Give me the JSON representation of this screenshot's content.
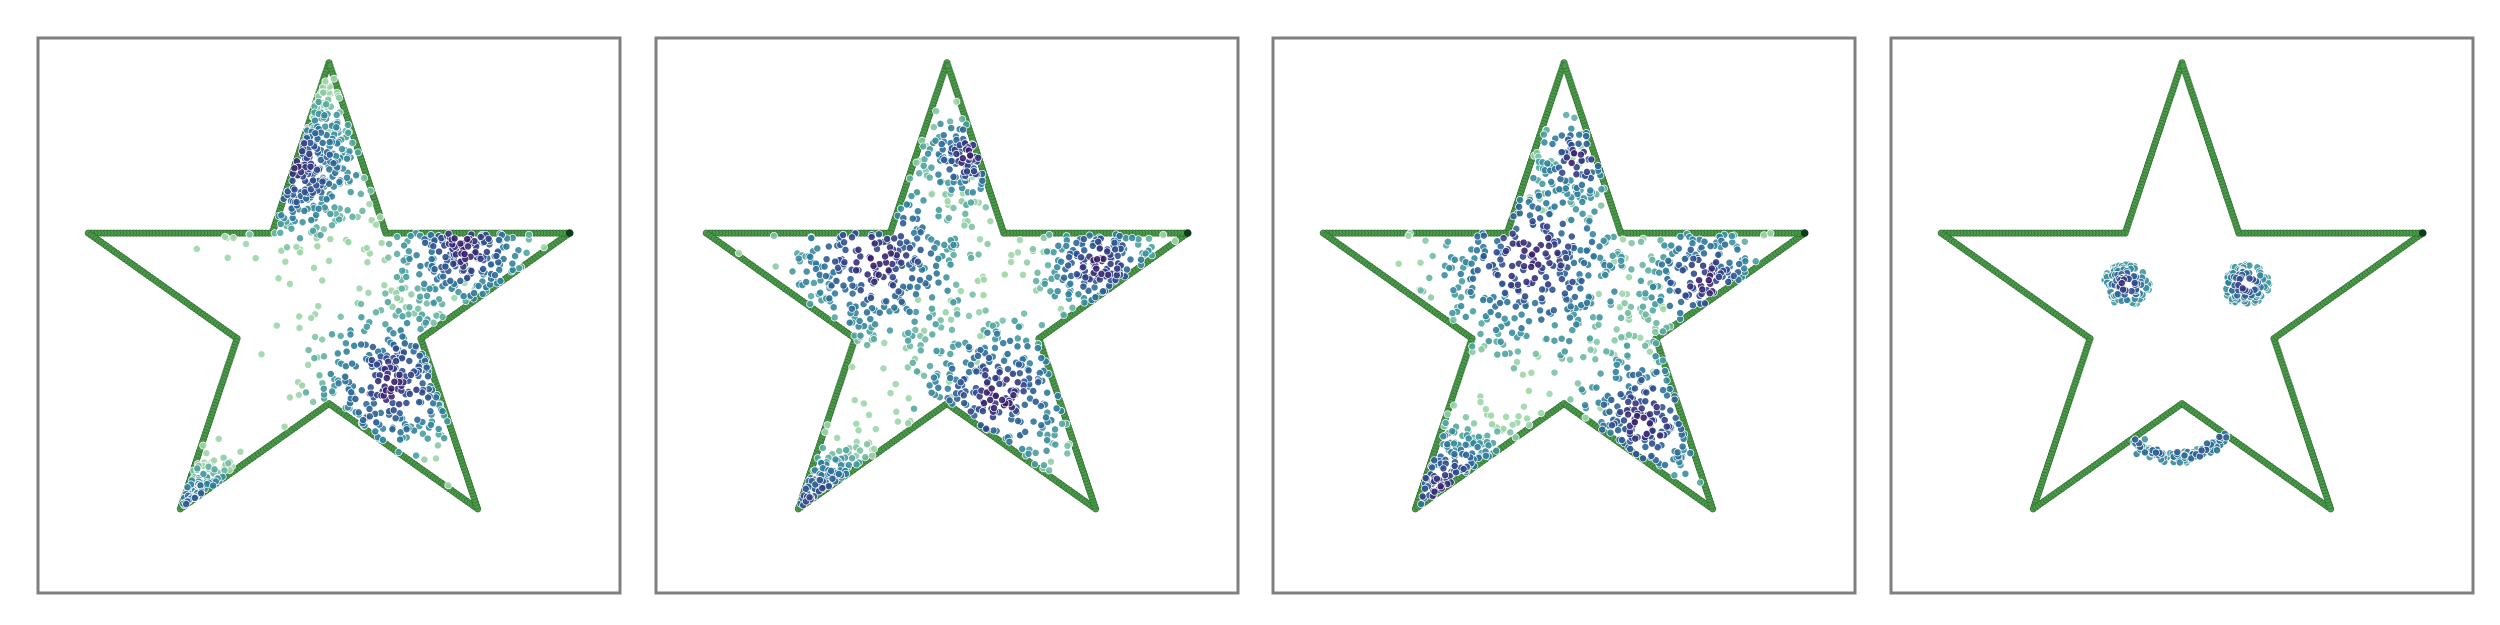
{
  "chart_data": [
    {
      "type": "scatter",
      "title": "",
      "xlabel": "",
      "ylabel": "",
      "grid": false,
      "xlim": [
        -1.15,
        1.15
      ],
      "ylim": [
        -1.15,
        1.1
      ],
      "outline": "star",
      "outline_color": "#4a9a4a",
      "outline_end_color": "#0b3d1a",
      "point_colormap": [
        "#9ed6a8",
        "#4ca3a0",
        "#2c7b9c",
        "#2f4d8f",
        "#3b1e6a"
      ],
      "clusters": [
        {
          "x": -0.15,
          "y": 0.58,
          "spread": 0.16,
          "n": 300
        },
        {
          "x": -0.18,
          "y": 0.88,
          "spread": 0.07,
          "n": 70
        },
        {
          "x": 0.53,
          "y": 0.25,
          "spread": 0.15,
          "n": 230
        },
        {
          "x": 0.25,
          "y": -0.3,
          "spread": 0.17,
          "n": 300
        },
        {
          "x": -0.48,
          "y": -0.85,
          "spread": 0.11,
          "n": 100
        }
      ]
    },
    {
      "type": "scatter",
      "title": "",
      "xlabel": "",
      "ylabel": "",
      "grid": false,
      "xlim": [
        -1.15,
        1.15
      ],
      "ylim": [
        -1.15,
        1.1
      ],
      "outline": "star",
      "outline_color": "#4a9a4a",
      "outline_end_color": "#0b3d1a",
      "point_colormap": [
        "#9ed6a8",
        "#4ca3a0",
        "#2c7b9c",
        "#2f4d8f",
        "#3b1e6a"
      ],
      "clusters": [
        {
          "x": -0.28,
          "y": 0.2,
          "spread": 0.2,
          "n": 320
        },
        {
          "x": 0.08,
          "y": 0.62,
          "spread": 0.1,
          "n": 120
        },
        {
          "x": 0.6,
          "y": 0.18,
          "spread": 0.13,
          "n": 180
        },
        {
          "x": 0.2,
          "y": -0.35,
          "spread": 0.18,
          "n": 260
        },
        {
          "x": -0.48,
          "y": -0.82,
          "spread": 0.14,
          "n": 120
        }
      ]
    },
    {
      "type": "scatter",
      "title": "",
      "xlabel": "",
      "ylabel": "",
      "grid": false,
      "xlim": [
        -1.15,
        1.15
      ],
      "ylim": [
        -1.15,
        1.1
      ],
      "outline": "star",
      "outline_color": "#4a9a4a",
      "outline_end_color": "#0b3d1a",
      "point_colormap": [
        "#9ed6a8",
        "#4ca3a0",
        "#2c7b9c",
        "#2f4d8f",
        "#3b1e6a"
      ],
      "clusters": [
        {
          "x": -0.12,
          "y": 0.2,
          "spread": 0.22,
          "n": 380
        },
        {
          "x": 0.55,
          "y": 0.12,
          "spread": 0.14,
          "n": 170
        },
        {
          "x": 0.32,
          "y": -0.45,
          "spread": 0.17,
          "n": 200
        },
        {
          "x": -0.45,
          "y": -0.75,
          "spread": 0.16,
          "n": 150
        },
        {
          "x": 0.05,
          "y": 0.6,
          "spread": 0.1,
          "n": 90
        }
      ]
    },
    {
      "type": "scatter",
      "title": "",
      "xlabel": "",
      "ylabel": "",
      "grid": false,
      "xlim": [
        -1.15,
        1.15
      ],
      "ylim": [
        -1.15,
        1.1
      ],
      "outline": "star",
      "outline_color": "#4a9a4a",
      "outline_end_color": "#0b3d1a",
      "point_colormap": [
        "#9ed6a8",
        "#4ca3a0",
        "#2c7b9c",
        "#2f4d8f",
        "#3b1e6a"
      ],
      "face": {
        "left_eye": {
          "x": -0.22,
          "y": 0.1,
          "r": 0.09
        },
        "right_eye": {
          "x": 0.25,
          "y": 0.1,
          "r": 0.09
        },
        "mouth": {
          "x_from": -0.2,
          "x_to": 0.18,
          "y_center": -0.53,
          "depth": 0.07
        }
      }
    }
  ]
}
